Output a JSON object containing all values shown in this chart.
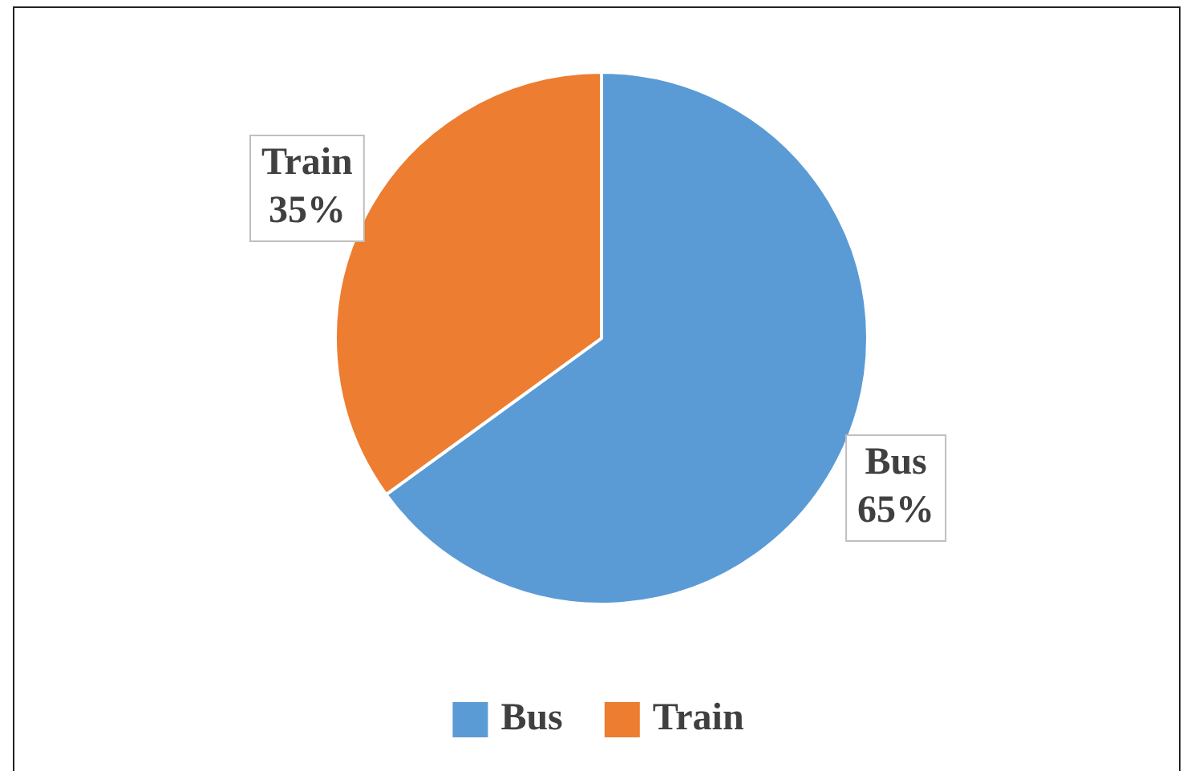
{
  "chart_data": {
    "type": "pie",
    "categories": [
      "Bus",
      "Train"
    ],
    "values": [
      65,
      35
    ],
    "colors": [
      "#5b9bd5",
      "#ed7d31"
    ],
    "value_labels": [
      "65%",
      "35%"
    ],
    "legend": "bottom"
  }
}
